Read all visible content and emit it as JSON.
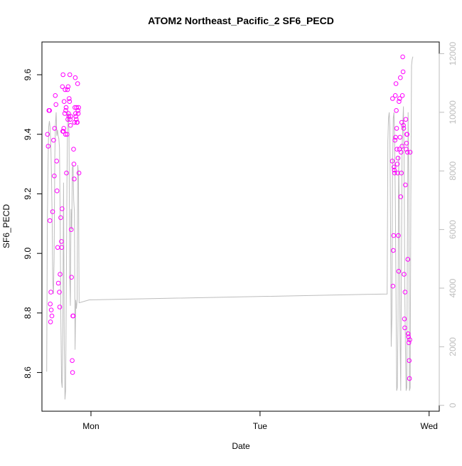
{
  "chart_data": {
    "type": "scatter",
    "title": "ATOM2 Northeast_Pacific_2 SF6_PECD",
    "xlabel": "Date",
    "ylabel": "SF6_PECD",
    "x_ticks": [
      {
        "label": "Mon",
        "value": 0
      },
      {
        "label": "Tue",
        "value": 1
      },
      {
        "label": "Wed",
        "value": 2
      }
    ],
    "x_unit": "days after Mon 00:00",
    "xlim": [
      -0.29,
      2.06
    ],
    "ylim": [
      8.47,
      9.71
    ],
    "y_ticks": [
      "8.6",
      "8.8",
      "9.0",
      "9.2",
      "9.4",
      "9.6"
    ],
    "y2lim": [
      -200,
      12400
    ],
    "y2_ticks": [
      "0",
      "2000",
      "4000",
      "6000",
      "8000",
      "10000",
      "12000"
    ],
    "grid": false,
    "colors": {
      "points": "#ff00ff",
      "line": "#bdbdbd",
      "right_axis": "#bdbdbd"
    },
    "series": [
      {
        "kind": "points",
        "axis": "left",
        "x": [
          -0.257,
          -0.253,
          -0.249,
          -0.245,
          -0.243,
          -0.241,
          -0.239,
          -0.237,
          -0.235,
          -0.231,
          -0.227,
          -0.221,
          -0.217,
          -0.215,
          -0.211,
          -0.207,
          -0.203,
          -0.201,
          -0.197,
          -0.193,
          -0.187,
          -0.185,
          -0.183,
          -0.179,
          -0.175,
          -0.173,
          -0.171,
          -0.169,
          -0.167,
          -0.165,
          -0.163,
          -0.161,
          -0.159,
          -0.155,
          -0.153,
          -0.151,
          -0.149,
          -0.147,
          -0.145,
          -0.141,
          -0.139,
          -0.137,
          -0.135,
          -0.133,
          -0.131,
          -0.129,
          -0.127,
          -0.125,
          -0.123,
          -0.121,
          -0.119,
          -0.117,
          -0.115,
          -0.111,
          -0.109,
          -0.107,
          -0.105,
          -0.103,
          -0.101,
          -0.099,
          -0.097,
          -0.095,
          -0.093,
          -0.091,
          -0.089,
          -0.087,
          -0.085,
          -0.083,
          -0.081,
          -0.079,
          -0.077,
          -0.075,
          -0.073,
          -0.071,
          1.782,
          1.784,
          1.786,
          1.788,
          1.79,
          1.792,
          1.794,
          1.796,
          1.798,
          1.8,
          1.802,
          1.804,
          1.806,
          1.808,
          1.81,
          1.812,
          1.814,
          1.816,
          1.818,
          1.82,
          1.822,
          1.824,
          1.826,
          1.828,
          1.83,
          1.832,
          1.834,
          1.836,
          1.838,
          1.84,
          1.842,
          1.844,
          1.846,
          1.848,
          1.85,
          1.852,
          1.854,
          1.856,
          1.858,
          1.86,
          1.862,
          1.864,
          1.866,
          1.868,
          1.87,
          1.872,
          1.874,
          1.876,
          1.878,
          1.88,
          1.882,
          1.884,
          1.886,
          1.888
        ],
        "y": [
          9.4,
          9.36,
          9.48,
          9.48,
          9.11,
          8.83,
          8.77,
          8.87,
          8.81,
          8.79,
          9.14,
          9.38,
          9.26,
          9.42,
          9.53,
          9.5,
          9.31,
          9.21,
          9.02,
          8.9,
          8.87,
          8.82,
          8.93,
          9.12,
          9.04,
          9.02,
          9.15,
          9.56,
          9.41,
          9.6,
          9.41,
          9.42,
          9.51,
          9.47,
          9.55,
          9.4,
          9.48,
          9.49,
          9.27,
          9.4,
          9.55,
          9.45,
          9.56,
          9.47,
          9.46,
          9.52,
          9.51,
          9.6,
          9.45,
          9.43,
          9.46,
          9.08,
          8.92,
          8.64,
          8.6,
          8.79,
          8.79,
          9.35,
          9.3,
          9.25,
          9.44,
          9.49,
          9.59,
          9.47,
          9.46,
          9.45,
          9.49,
          9.44,
          9.44,
          9.57,
          9.48,
          9.47,
          9.49,
          9.27,
          9.31,
          9.52,
          8.89,
          9.01,
          9.06,
          9.29,
          9.28,
          9.27,
          9.38,
          9.53,
          9.39,
          9.57,
          9.48,
          9.42,
          9.35,
          9.3,
          9.27,
          9.32,
          9.06,
          8.94,
          9.51,
          9.35,
          9.52,
          9.39,
          9.59,
          9.19,
          9.34,
          9.27,
          9.44,
          9.36,
          9.53,
          9.66,
          9.61,
          9.43,
          9.42,
          8.93,
          8.78,
          8.75,
          8.87,
          9.23,
          9.45,
          9.35,
          9.37,
          9.4,
          9.4,
          9.34,
          8.98,
          8.73,
          8.72,
          8.7,
          8.64,
          8.58,
          8.71,
          9.34
        ]
      },
      {
        "kind": "line",
        "axis": "right",
        "x": [
          -0.262,
          -0.258,
          -0.254,
          -0.25,
          -0.246,
          -0.242,
          -0.238,
          -0.234,
          -0.23,
          -0.226,
          -0.222,
          -0.218,
          -0.214,
          -0.21,
          -0.206,
          -0.202,
          -0.198,
          -0.194,
          -0.19,
          -0.186,
          -0.182,
          -0.178,
          -0.174,
          -0.17,
          -0.166,
          -0.162,
          -0.158,
          -0.154,
          -0.15,
          -0.146,
          -0.142,
          -0.138,
          -0.134,
          -0.13,
          -0.126,
          -0.122,
          -0.118,
          -0.114,
          -0.11,
          -0.106,
          -0.102,
          -0.098,
          -0.094,
          -0.09,
          -0.086,
          -0.082,
          -0.078,
          -0.074,
          -0.07,
          -0.01,
          1.752,
          1.756,
          1.76,
          1.764,
          1.768,
          1.772,
          1.776,
          1.78,
          1.784,
          1.788,
          1.792,
          1.796,
          1.8,
          1.804,
          1.808,
          1.812,
          1.816,
          1.82,
          1.824,
          1.828,
          1.832,
          1.836,
          1.84,
          1.844,
          1.848,
          1.852,
          1.856,
          1.86,
          1.864,
          1.868,
          1.872,
          1.876,
          1.88,
          1.884,
          1.888,
          1.892,
          1.896,
          1.9,
          1.904
        ],
        "y": [
          1150,
          6200,
          8300,
          9500,
          9700,
          9500,
          9000,
          8000,
          6500,
          4200,
          3800,
          5000,
          8500,
          9600,
          10000,
          9200,
          9400,
          9200,
          9100,
          8800,
          6200,
          3000,
          800,
          600,
          3000,
          7600,
          2100,
          200,
          500,
          4000,
          7600,
          10000,
          9900,
          9200,
          4500,
          3400,
          6700,
          6000,
          8100,
          8200,
          7000,
          6600,
          1900,
          3600,
          3300,
          3600,
          8200,
          7900,
          3500,
          3600,
          3800,
          9000,
          9800,
          10000,
          9500,
          6000,
          2000,
          3000,
          8000,
          9800,
          10000,
          9000,
          7000,
          4000,
          500,
          600,
          3000,
          8500,
          6500,
          2600,
          500,
          4500,
          8800,
          9500,
          10200,
          8500,
          4000,
          2000,
          500,
          600,
          6000,
          10000,
          7500,
          500,
          600,
          7000,
          11600,
          11800,
          11900
        ]
      }
    ]
  }
}
